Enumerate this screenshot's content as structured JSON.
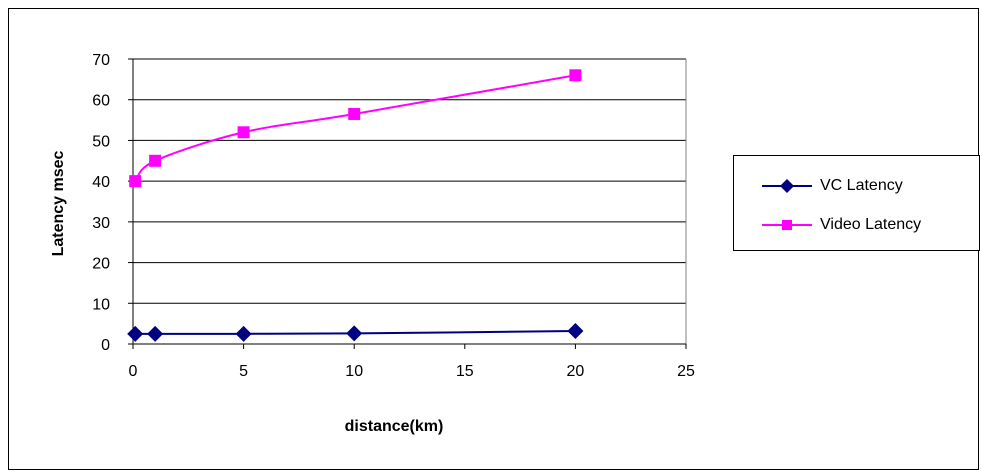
{
  "chart_data": {
    "type": "line",
    "title": "",
    "xlabel": "distance(km)",
    "ylabel": "Latency msec",
    "xlim": [
      0,
      25
    ],
    "ylim": [
      0,
      70
    ],
    "xticks": [
      0,
      5,
      10,
      15,
      20,
      25
    ],
    "yticks": [
      0,
      10,
      20,
      30,
      40,
      50,
      60,
      70
    ],
    "x_tick_labels": [
      "0",
      "5",
      "10",
      "15",
      "20",
      "25"
    ],
    "y_tick_labels": [
      "0",
      "10",
      "20",
      "30",
      "40",
      "50",
      "60",
      "70"
    ],
    "grid": "horizontal",
    "legend_position": "right",
    "series": [
      {
        "name": "VC Latency",
        "color": "#000080",
        "marker": "diamond",
        "x": [
          0.1,
          1,
          5,
          10,
          20
        ],
        "y": [
          2.5,
          2.5,
          2.5,
          2.6,
          3.2
        ]
      },
      {
        "name": "Video Latency",
        "color": "#FF00FF",
        "marker": "square",
        "x": [
          0.1,
          1,
          5,
          10,
          20
        ],
        "y": [
          40,
          45,
          52,
          56.5,
          66
        ]
      }
    ]
  }
}
